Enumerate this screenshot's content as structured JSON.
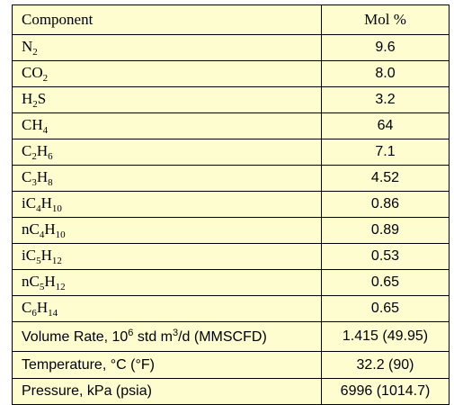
{
  "table": {
    "header": [
      "Component",
      "Mol %"
    ],
    "rows": [
      {
        "component": [
          {
            "text": "N"
          },
          {
            "sub": "2"
          }
        ],
        "value": "9.6"
      },
      {
        "component": [
          {
            "text": "CO"
          },
          {
            "sub": "2"
          }
        ],
        "value": "8.0"
      },
      {
        "component": [
          {
            "text": "H"
          },
          {
            "sub": "2"
          },
          {
            "text": "S"
          }
        ],
        "value": "3.2"
      },
      {
        "component": [
          {
            "text": "CH"
          },
          {
            "sub": "4"
          }
        ],
        "value": "64"
      },
      {
        "component": [
          {
            "text": "C"
          },
          {
            "sub": "2"
          },
          {
            "text": "H"
          },
          {
            "sub": "6"
          }
        ],
        "value": "7.1"
      },
      {
        "component": [
          {
            "text": "C"
          },
          {
            "sub": "3"
          },
          {
            "text": "H"
          },
          {
            "sub": "8"
          }
        ],
        "value": "4.52"
      },
      {
        "component": [
          {
            "text": "iC"
          },
          {
            "sub": "4"
          },
          {
            "text": "H"
          },
          {
            "sub": "10"
          }
        ],
        "value": "0.86"
      },
      {
        "component": [
          {
            "text": "nC"
          },
          {
            "sub": "4"
          },
          {
            "text": "H"
          },
          {
            "sub": "10"
          }
        ],
        "value": "0.89"
      },
      {
        "component": [
          {
            "text": "iC"
          },
          {
            "sub": "5"
          },
          {
            "text": "H"
          },
          {
            "sub": "12"
          }
        ],
        "value": "0.53"
      },
      {
        "component": [
          {
            "text": "nC"
          },
          {
            "sub": "5"
          },
          {
            "text": "H"
          },
          {
            "sub": "12"
          }
        ],
        "value": "0.65"
      },
      {
        "component": [
          {
            "text": "C"
          },
          {
            "sub": "6"
          },
          {
            "text": "H"
          },
          {
            "sub": "14"
          }
        ],
        "value": "0.65"
      },
      {
        "component": [
          {
            "text": "Volume Rate, 10"
          },
          {
            "sup": "6"
          },
          {
            "text": " std m"
          },
          {
            "sup": "3"
          },
          {
            "text": "/d (MMSCFD)"
          }
        ],
        "value": "1.415 (49.95)"
      },
      {
        "component": [
          {
            "text": "Temperature, °C (°F)"
          }
        ],
        "value": "32.2 (90)"
      },
      {
        "component": [
          {
            "text": "Pressure, kPa (psia)"
          }
        ],
        "value": "6996 (1014.7)"
      }
    ]
  }
}
